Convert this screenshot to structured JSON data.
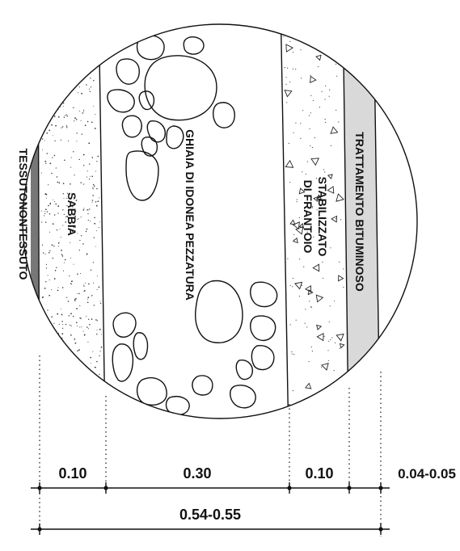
{
  "layers": {
    "geotextile": "TESSUTONONTESSUTO",
    "sand": "SABBIA",
    "gravel": "GHIAIA DI IDONEA PEZZATURA",
    "stabilized_line1": "STABILIZZATO",
    "stabilized_line2": "DI FRANTOIO",
    "bitumen": "TRATTAMENTO BITUMINOSO"
  },
  "dimensions": {
    "sand": "0.10",
    "gravel": "0.30",
    "stabilized": "0.10",
    "bitumen": "0.04-0.05",
    "total": "0.54-0.55"
  }
}
